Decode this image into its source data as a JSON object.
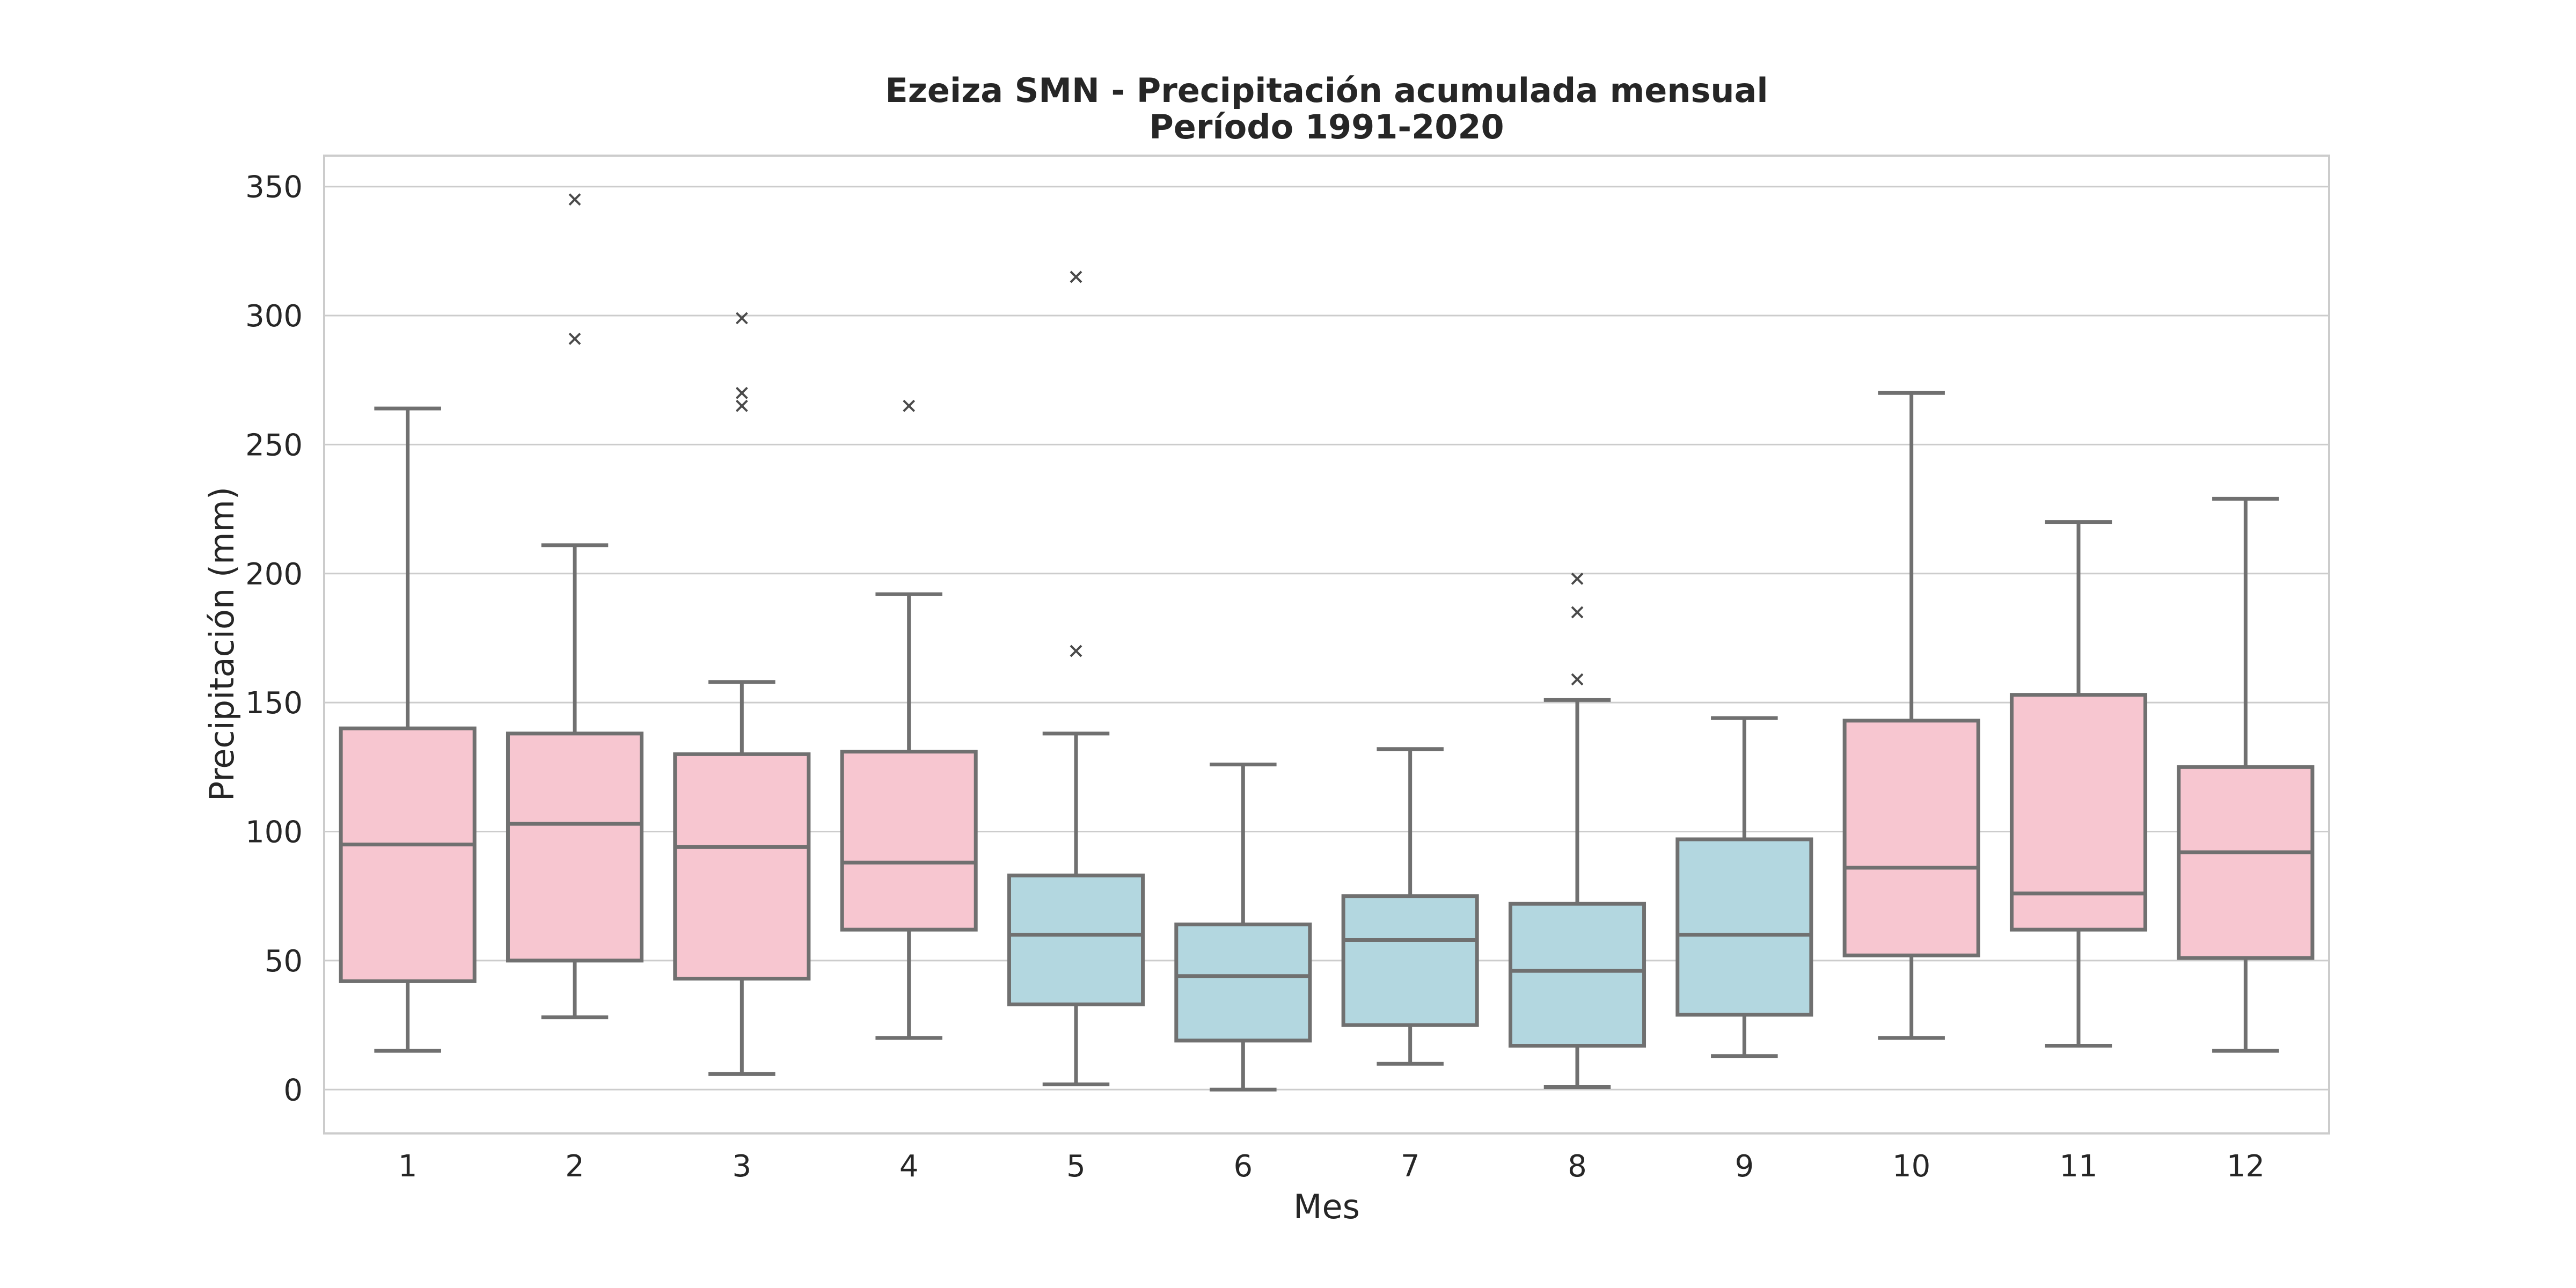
{
  "chart_data": {
    "type": "boxplot",
    "title": "Ezeiza SMN - Precipitación acumulada mensual",
    "subtitle": "Período 1991-2020",
    "xlabel": "Mes",
    "ylabel": "Precipitación (mm)",
    "ylim": [
      -17,
      362
    ],
    "yticks": [
      0,
      50,
      100,
      150,
      200,
      250,
      300,
      350
    ],
    "grid": true,
    "colors": {
      "warm": "#f7c6d0",
      "cool": "#b3d7e0",
      "line": "#707070",
      "grid": "#cccccc",
      "frame": "#cccccc"
    },
    "categories": [
      "1",
      "2",
      "3",
      "4",
      "5",
      "6",
      "7",
      "8",
      "9",
      "10",
      "11",
      "12"
    ],
    "boxes": [
      {
        "month": "1",
        "whisker_low": 15,
        "q1": 42,
        "median": 95,
        "q3": 140,
        "whisker_high": 264,
        "outliers": [],
        "color": "warm"
      },
      {
        "month": "2",
        "whisker_low": 28,
        "q1": 50,
        "median": 103,
        "q3": 138,
        "whisker_high": 211,
        "outliers": [
          291,
          345
        ],
        "color": "warm"
      },
      {
        "month": "3",
        "whisker_low": 6,
        "q1": 43,
        "median": 94,
        "q3": 130,
        "whisker_high": 158,
        "outliers": [
          265,
          270,
          299
        ],
        "color": "warm"
      },
      {
        "month": "4",
        "whisker_low": 20,
        "q1": 62,
        "median": 88,
        "q3": 131,
        "whisker_high": 192,
        "outliers": [
          265
        ],
        "color": "warm"
      },
      {
        "month": "5",
        "whisker_low": 2,
        "q1": 33,
        "median": 60,
        "q3": 83,
        "whisker_high": 138,
        "outliers": [
          170,
          315
        ],
        "color": "cool"
      },
      {
        "month": "6",
        "whisker_low": 0,
        "q1": 19,
        "median": 44,
        "q3": 64,
        "whisker_high": 126,
        "outliers": [],
        "color": "cool"
      },
      {
        "month": "7",
        "whisker_low": 10,
        "q1": 25,
        "median": 58,
        "q3": 75,
        "whisker_high": 132,
        "outliers": [],
        "color": "cool"
      },
      {
        "month": "8",
        "whisker_low": 1,
        "q1": 17,
        "median": 46,
        "q3": 72,
        "whisker_high": 151,
        "outliers": [
          159,
          185,
          198
        ],
        "color": "cool"
      },
      {
        "month": "9",
        "whisker_low": 13,
        "q1": 29,
        "median": 60,
        "q3": 97,
        "whisker_high": 144,
        "outliers": [],
        "color": "cool"
      },
      {
        "month": "10",
        "whisker_low": 20,
        "q1": 52,
        "median": 86,
        "q3": 143,
        "whisker_high": 270,
        "outliers": [],
        "color": "warm"
      },
      {
        "month": "11",
        "whisker_low": 17,
        "q1": 62,
        "median": 76,
        "q3": 153,
        "whisker_high": 220,
        "outliers": [],
        "color": "warm"
      },
      {
        "month": "12",
        "whisker_low": 15,
        "q1": 51,
        "median": 92,
        "q3": 125,
        "whisker_high": 229,
        "outliers": [],
        "color": "warm"
      }
    ]
  }
}
